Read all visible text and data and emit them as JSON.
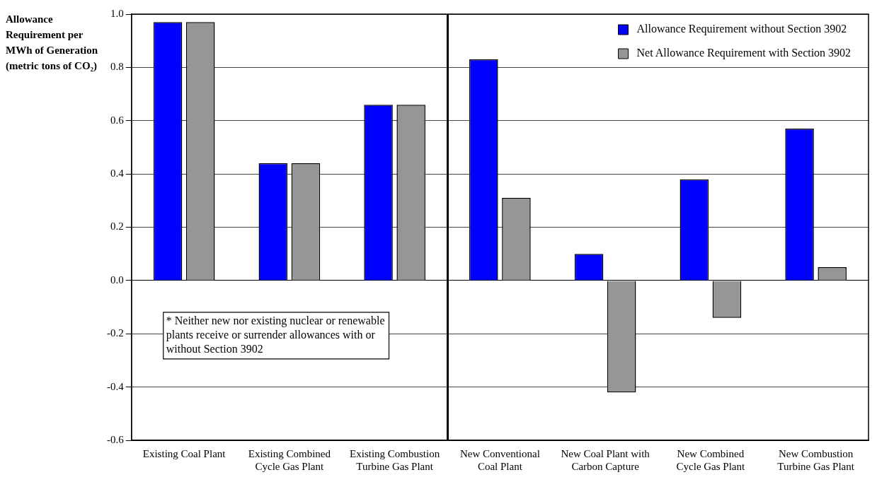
{
  "chart_data": {
    "type": "bar",
    "ylabel": "Allowance Requirement per MWh of Generation (metric tons of CO₂)",
    "categories": [
      "Existing Coal Plant",
      "Existing Combined Cycle Gas Plant",
      "Existing Combustion Turbine Gas Plant",
      "New Conventional Coal Plant",
      "New Coal Plant with Carbon Capture",
      "New Combined Cycle Gas Plant",
      "New Combustion Turbine Gas Plant"
    ],
    "series": [
      {
        "name": "Allowance Requirement without Section 3902",
        "color": "#0000ff",
        "values": [
          0.97,
          0.44,
          0.66,
          0.83,
          0.1,
          0.38,
          0.57
        ]
      },
      {
        "name": "Net Allowance Requirement with Section 3902",
        "color": "#969696",
        "values": [
          0.97,
          0.44,
          0.66,
          0.31,
          -0.42,
          -0.14,
          0.05
        ]
      }
    ],
    "ylim": [
      -0.6,
      1.0
    ],
    "yticks": [
      {
        "value": -0.6,
        "label": "-0.6"
      },
      {
        "value": -0.4,
        "label": "-0.4"
      },
      {
        "value": -0.2,
        "label": "-0.2"
      },
      {
        "value": 0,
        "label": "0.0"
      },
      {
        "value": 0.2,
        "label": "0.2"
      },
      {
        "value": 0.4,
        "label": "0.4"
      },
      {
        "value": 0.6,
        "label": "0.6"
      },
      {
        "value": 0.8,
        "label": "0.8"
      },
      {
        "value": 1,
        "label": "1.0"
      }
    ],
    "grid": "y",
    "legend": "top right",
    "annotations": [
      "* Neither new nor existing nuclear or renewable plants receive or surrender allowances with or without Section 3902"
    ]
  }
}
